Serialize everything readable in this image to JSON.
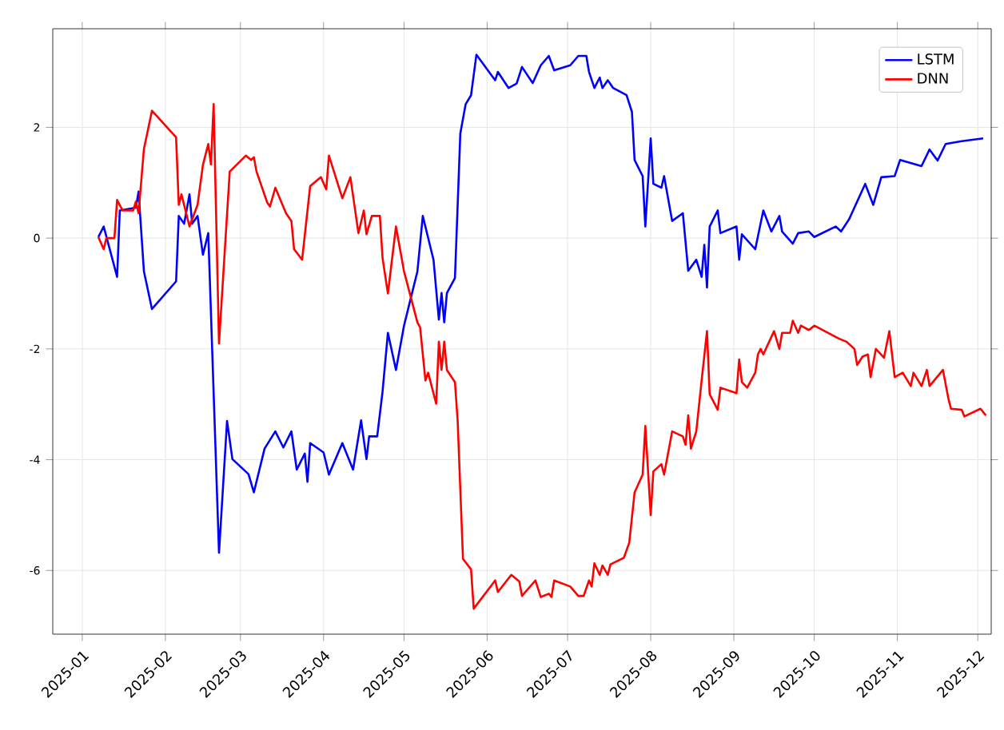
{
  "chart_data": {
    "type": "line",
    "xlim": [
      "2024-12-21",
      "2025-12-06"
    ],
    "xticks": [
      "2025-01",
      "2025-02",
      "2025-03",
      "2025-04",
      "2025-05",
      "2025-06",
      "2025-07",
      "2025-08",
      "2025-09",
      "2025-10",
      "2025-11",
      "2025-12"
    ],
    "ylim": [
      -7.15,
      3.78
    ],
    "yticks": [
      -6,
      -4,
      -2,
      0,
      2
    ],
    "grid": true,
    "legend": "top right",
    "line_style": "solid",
    "marker": "none",
    "series": [
      {
        "name": "LSTM",
        "color": "#0000ff",
        "x": [
          "2025-01-07",
          "2025-01-09",
          "2025-01-14",
          "2025-01-15",
          "2025-01-21",
          "2025-01-22",
          "2025-01-24",
          "2025-01-27",
          "2025-02-05",
          "2025-02-06",
          "2025-02-08",
          "2025-02-10",
          "2025-02-11",
          "2025-02-13",
          "2025-02-15",
          "2025-02-17",
          "2025-02-21",
          "2025-02-24",
          "2025-02-26",
          "2025-03-04",
          "2025-03-06",
          "2025-03-10",
          "2025-03-14",
          "2025-03-17",
          "2025-03-20",
          "2025-03-22",
          "2025-03-25",
          "2025-03-26",
          "2025-03-27",
          "2025-04-01",
          "2025-04-03",
          "2025-04-08",
          "2025-04-12",
          "2025-04-15",
          "2025-04-17",
          "2025-04-18",
          "2025-04-21",
          "2025-04-23",
          "2025-04-25",
          "2025-04-28",
          "2025-05-01",
          "2025-05-06",
          "2025-05-08",
          "2025-05-12",
          "2025-05-14",
          "2025-05-15",
          "2025-05-16",
          "2025-05-17",
          "2025-05-20",
          "2025-05-22",
          "2025-05-24",
          "2025-05-26",
          "2025-05-28",
          "2025-06-04",
          "2025-06-05",
          "2025-06-09",
          "2025-06-12",
          "2025-06-14",
          "2025-06-18",
          "2025-06-21",
          "2025-06-24",
          "2025-06-26",
          "2025-07-02",
          "2025-07-05",
          "2025-07-08",
          "2025-07-09",
          "2025-07-11",
          "2025-07-13",
          "2025-07-14",
          "2025-07-16",
          "2025-07-18",
          "2025-07-23",
          "2025-07-25",
          "2025-07-26",
          "2025-07-29",
          "2025-07-30",
          "2025-08-01",
          "2025-08-02",
          "2025-08-05",
          "2025-08-06",
          "2025-08-09",
          "2025-08-13",
          "2025-08-15",
          "2025-08-18",
          "2025-08-20",
          "2025-08-21",
          "2025-08-22",
          "2025-08-23",
          "2025-08-26",
          "2025-08-27",
          "2025-09-02",
          "2025-09-03",
          "2025-09-04",
          "2025-09-09",
          "2025-09-12",
          "2025-09-15",
          "2025-09-18",
          "2025-09-19",
          "2025-09-23",
          "2025-09-25",
          "2025-09-29",
          "2025-10-01",
          "2025-10-09",
          "2025-10-11",
          "2025-10-14",
          "2025-10-20",
          "2025-10-23",
          "2025-10-26",
          "2025-10-31",
          "2025-11-02",
          "2025-11-10",
          "2025-11-13",
          "2025-11-16",
          "2025-11-19",
          "2025-11-25",
          "2025-12-03"
        ],
        "values": [
          0.02,
          0.21,
          -0.7,
          0.5,
          0.55,
          0.84,
          -0.6,
          -1.28,
          -0.78,
          0.4,
          0.26,
          0.79,
          0.26,
          0.4,
          -0.3,
          0.09,
          -5.68,
          -3.3,
          -3.99,
          -4.26,
          -4.59,
          -3.8,
          -3.49,
          -3.78,
          -3.49,
          -4.18,
          -3.89,
          -4.4,
          -3.7,
          -3.87,
          -4.27,
          -3.7,
          -4.18,
          -3.29,
          -3.99,
          -3.58,
          -3.58,
          -2.77,
          -1.71,
          -2.38,
          -1.58,
          -0.6,
          0.4,
          -0.39,
          -1.47,
          -0.99,
          -1.52,
          -0.99,
          -0.72,
          1.89,
          2.42,
          2.58,
          3.31,
          2.85,
          3.0,
          2.71,
          2.79,
          3.09,
          2.8,
          3.12,
          3.29,
          3.03,
          3.12,
          3.29,
          3.29,
          3.0,
          2.71,
          2.9,
          2.71,
          2.85,
          2.71,
          2.58,
          2.28,
          1.41,
          1.12,
          0.21,
          1.8,
          0.98,
          0.91,
          1.12,
          0.31,
          0.45,
          -0.59,
          -0.39,
          -0.7,
          -0.12,
          -0.89,
          0.21,
          0.5,
          0.09,
          0.21,
          -0.39,
          0.07,
          -0.2,
          0.5,
          0.12,
          0.4,
          0.12,
          -0.1,
          0.09,
          0.12,
          0.02,
          0.21,
          0.12,
          0.34,
          0.98,
          0.6,
          1.1,
          1.12,
          1.41,
          1.3,
          1.6,
          1.4,
          1.7,
          1.75,
          1.8
        ]
      },
      {
        "name": "DNN",
        "color": "#ff0000",
        "x": [
          "2025-01-07",
          "2025-01-09",
          "2025-01-10",
          "2025-01-13",
          "2025-01-14",
          "2025-01-16",
          "2025-01-20",
          "2025-01-21",
          "2025-01-22",
          "2025-01-24",
          "2025-01-27",
          "2025-02-05",
          "2025-02-06",
          "2025-02-07",
          "2025-02-10",
          "2025-02-13",
          "2025-02-15",
          "2025-02-17",
          "2025-02-18",
          "2025-02-19",
          "2025-02-21",
          "2025-02-25",
          "2025-03-03",
          "2025-03-05",
          "2025-03-06",
          "2025-03-07",
          "2025-03-11",
          "2025-03-12",
          "2025-03-14",
          "2025-03-18",
          "2025-03-20",
          "2025-03-21",
          "2025-03-24",
          "2025-03-27",
          "2025-03-31",
          "2025-04-02",
          "2025-04-03",
          "2025-04-08",
          "2025-04-11",
          "2025-04-14",
          "2025-04-16",
          "2025-04-17",
          "2025-04-19",
          "2025-04-22",
          "2025-04-23",
          "2025-04-25",
          "2025-04-28",
          "2025-05-01",
          "2025-05-06",
          "2025-05-07",
          "2025-05-09",
          "2025-05-10",
          "2025-05-13",
          "2025-05-14",
          "2025-05-15",
          "2025-05-16",
          "2025-05-17",
          "2025-05-20",
          "2025-05-21",
          "2025-05-23",
          "2025-05-26",
          "2025-05-27",
          "2025-06-04",
          "2025-06-05",
          "2025-06-10",
          "2025-06-13",
          "2025-06-14",
          "2025-06-19",
          "2025-06-21",
          "2025-06-24",
          "2025-06-25",
          "2025-06-26",
          "2025-07-02",
          "2025-07-05",
          "2025-07-07",
          "2025-07-09",
          "2025-07-10",
          "2025-07-11",
          "2025-07-13",
          "2025-07-14",
          "2025-07-16",
          "2025-07-17",
          "2025-07-22",
          "2025-07-24",
          "2025-07-26",
          "2025-07-29",
          "2025-07-30",
          "2025-08-01",
          "2025-08-02",
          "2025-08-05",
          "2025-08-06",
          "2025-08-09",
          "2025-08-13",
          "2025-08-14",
          "2025-08-15",
          "2025-08-16",
          "2025-08-18",
          "2025-08-20",
          "2025-08-22",
          "2025-08-23",
          "2025-08-26",
          "2025-08-27",
          "2025-09-02",
          "2025-09-03",
          "2025-09-04",
          "2025-09-06",
          "2025-09-09",
          "2025-09-10",
          "2025-09-11",
          "2025-09-12",
          "2025-09-16",
          "2025-09-18",
          "2025-09-19",
          "2025-09-22",
          "2025-09-23",
          "2025-09-25",
          "2025-09-26",
          "2025-09-29",
          "2025-10-01",
          "2025-10-10",
          "2025-10-13",
          "2025-10-16",
          "2025-10-17",
          "2025-10-19",
          "2025-10-21",
          "2025-10-22",
          "2025-10-24",
          "2025-10-27",
          "2025-10-29",
          "2025-10-31",
          "2025-11-03",
          "2025-11-06",
          "2025-11-07",
          "2025-11-10",
          "2025-11-12",
          "2025-11-13",
          "2025-11-18",
          "2025-11-20",
          "2025-11-21",
          "2025-11-25",
          "2025-11-26",
          "2025-12-02",
          "2025-12-04"
        ],
        "values": [
          0.02,
          -0.2,
          0.0,
          0.0,
          0.69,
          0.5,
          0.5,
          0.66,
          0.45,
          1.61,
          2.3,
          1.82,
          0.6,
          0.79,
          0.21,
          0.6,
          1.32,
          1.7,
          1.33,
          2.42,
          -1.9,
          1.2,
          1.49,
          1.41,
          1.46,
          1.2,
          0.64,
          0.57,
          0.91,
          0.45,
          0.31,
          -0.2,
          -0.39,
          0.94,
          1.1,
          0.88,
          1.49,
          0.72,
          1.1,
          0.09,
          0.5,
          0.07,
          0.4,
          0.4,
          -0.36,
          -1.0,
          0.21,
          -0.6,
          -1.52,
          -1.61,
          -2.57,
          -2.43,
          -2.99,
          -1.87,
          -2.38,
          -1.87,
          -2.38,
          -2.6,
          -3.29,
          -5.79,
          -5.98,
          -6.69,
          -6.18,
          -6.39,
          -6.08,
          -6.2,
          -6.46,
          -6.18,
          -6.48,
          -6.42,
          -6.48,
          -6.18,
          -6.29,
          -6.46,
          -6.46,
          -6.18,
          -6.29,
          -5.87,
          -6.08,
          -5.91,
          -6.08,
          -5.89,
          -5.77,
          -5.5,
          -4.59,
          -4.27,
          -3.39,
          -5.0,
          -4.21,
          -4.08,
          -4.27,
          -3.49,
          -3.58,
          -3.73,
          -3.2,
          -3.8,
          -3.49,
          -2.57,
          -1.68,
          -2.82,
          -3.1,
          -2.7,
          -2.8,
          -2.19,
          -2.6,
          -2.7,
          -2.43,
          -2.1,
          -2.0,
          -2.1,
          -1.68,
          -2.0,
          -1.71,
          -1.71,
          -1.49,
          -1.71,
          -1.58,
          -1.66,
          -1.58,
          -1.81,
          -1.87,
          -2.0,
          -2.29,
          -2.14,
          -2.1,
          -2.51,
          -2.0,
          -2.16,
          -1.68,
          -2.51,
          -2.43,
          -2.67,
          -2.43,
          -2.67,
          -2.38,
          -2.67,
          -2.38,
          -2.89,
          -3.08,
          -3.1,
          -3.22,
          -3.08,
          -3.2
        ]
      }
    ]
  }
}
